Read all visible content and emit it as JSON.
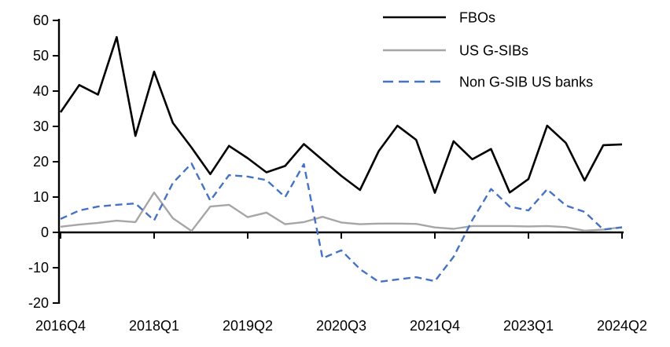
{
  "chart_data": {
    "type": "line",
    "title": "",
    "x_labels": [
      "2016Q4",
      "2017Q1",
      "2017Q2",
      "2017Q3",
      "2017Q4",
      "2018Q1",
      "2018Q2",
      "2018Q3",
      "2018Q4",
      "2019Q1",
      "2019Q2",
      "2019Q3",
      "2019Q4",
      "2020Q1",
      "2020Q2",
      "2020Q3",
      "2020Q4",
      "2021Q1",
      "2021Q2",
      "2021Q3",
      "2021Q4",
      "2022Q1",
      "2022Q2",
      "2022Q3",
      "2022Q4",
      "2023Q1",
      "2023Q2",
      "2023Q3",
      "2023Q4",
      "2024Q1",
      "2024Q2"
    ],
    "x_axis_tick_labels": [
      "2016Q4",
      "2018Q1",
      "2019Q2",
      "2020Q3",
      "2021Q4",
      "2023Q1",
      "2024Q2"
    ],
    "x_tick_every_n_quarters": 5,
    "y_ticks": [
      60,
      50,
      40,
      30,
      20,
      10,
      0,
      -10,
      -20
    ],
    "ylim": [
      -20,
      60
    ],
    "grid": false,
    "axis_color": "#000000",
    "legend_position": "top-right",
    "series": [
      {
        "name": "FBOs",
        "color": "#000000",
        "style": "solid",
        "values": [
          34,
          41.7,
          39,
          55.3,
          27.3,
          45.5,
          31,
          24,
          16.5,
          24.5,
          21,
          17,
          18.8,
          25,
          20.5,
          16,
          12,
          23,
          30.2,
          26.2,
          11.2,
          25.8,
          20.7,
          23.6,
          11.3,
          15.1,
          30.2,
          25.3,
          14.7,
          24.7,
          24.9
        ]
      },
      {
        "name": "US G-SIBs",
        "color": "#a6a6a6",
        "style": "solid",
        "values": [
          1.6,
          2.2,
          2.7,
          3.3,
          2.9,
          11.3,
          4,
          0.4,
          7.3,
          7.8,
          4.3,
          5.6,
          2.3,
          2.9,
          4.4,
          2.8,
          2.3,
          2.5,
          2.5,
          2.4,
          1.4,
          1,
          1.8,
          1.8,
          1.8,
          1.7,
          1.8,
          1.5,
          0.5,
          0.8,
          1.5
        ]
      },
      {
        "name": "Non G-SIB US banks",
        "color": "#4472c4",
        "style": "dashed",
        "values": [
          3.8,
          6.2,
          7.3,
          7.8,
          8.2,
          3.4,
          14,
          19.5,
          9,
          16.2,
          15.8,
          14.8,
          10,
          19.3,
          -7.3,
          -5.1,
          -10.4,
          -14,
          -13.3,
          -12.7,
          -13.8,
          -6.9,
          3.5,
          12.3,
          7.3,
          6.2,
          12.2,
          7.6,
          5.8,
          0.8,
          1.4
        ]
      }
    ]
  }
}
